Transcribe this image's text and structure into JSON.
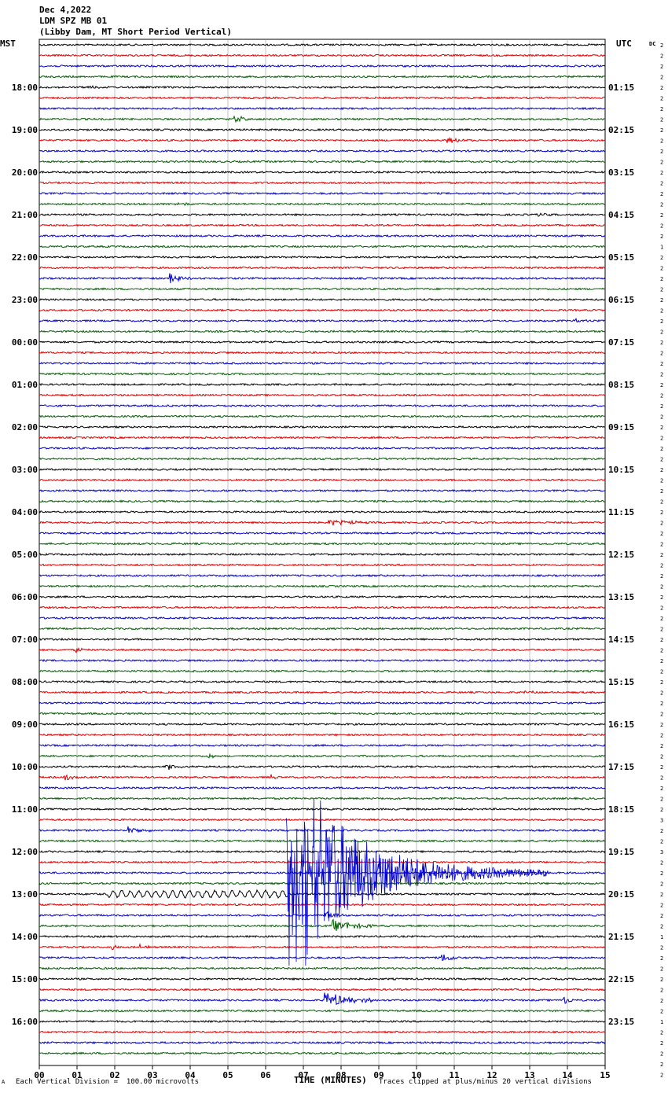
{
  "header": {
    "date": "Dec 4,2022",
    "station": "LDM SPZ MB 01",
    "description": "(Libby Dam, MT Short Period Vertical)",
    "left_tz": "MST",
    "right_tz": "UTC",
    "dc_label": "DC"
  },
  "footer": {
    "scale": "Each Vertical Division =  100.00 microvolts",
    "clip": "Traces clipped at plus/minus 20 vertical divisions",
    "corner": "A"
  },
  "colors": [
    "#000000",
    "#e00000",
    "#0000d0",
    "#006000"
  ],
  "chart_data": {
    "type": "line",
    "title": "",
    "xlabel": "TIME (MINUTES)",
    "xlim": [
      0,
      15
    ],
    "x_ticks": [
      "00",
      "01",
      "02",
      "03",
      "04",
      "05",
      "06",
      "07",
      "08",
      "09",
      "10",
      "11",
      "12",
      "13",
      "14",
      "15"
    ],
    "rows": 96,
    "minutes_per_row": 15,
    "left_hour_labels": [
      "18:00",
      "19:00",
      "20:00",
      "21:00",
      "22:00",
      "23:00",
      "00:00",
      "01:00",
      "02:00",
      "03:00",
      "04:00",
      "05:00",
      "06:00",
      "07:00",
      "08:00",
      "09:00",
      "10:00",
      "11:00",
      "12:00",
      "13:00",
      "14:00",
      "15:00",
      "16:00"
    ],
    "right_hour_labels": [
      "01:15",
      "02:15",
      "03:15",
      "04:15",
      "05:15",
      "06:15",
      "07:15",
      "08:15",
      "09:15",
      "10:15",
      "11:15",
      "12:15",
      "13:15",
      "14:15",
      "15:15",
      "16:15",
      "17:15",
      "18:15",
      "19:15",
      "20:15",
      "21:15",
      "22:15",
      "23:15"
    ],
    "dc_values": [
      "2",
      "2",
      "2",
      "2",
      "2",
      "2",
      "2",
      "2",
      "2",
      "2",
      "2",
      "2",
      "2",
      "2",
      "2",
      "2",
      "2",
      "2",
      "2",
      "1",
      "2",
      "2",
      "2",
      "2",
      "2",
      "2",
      "2",
      "2",
      "2",
      "2",
      "2",
      "2",
      "2",
      "2",
      "2",
      "2",
      "2",
      "2",
      "2",
      "2",
      "2",
      "2",
      "2",
      "2",
      "2",
      "2",
      "2",
      "2",
      "2",
      "2",
      "2",
      "2",
      "2",
      "2",
      "2",
      "2",
      "2",
      "2",
      "2",
      "2",
      "2",
      "2",
      "2",
      "2",
      "2",
      "2",
      "2",
      "2",
      "2",
      "2",
      "2",
      "2",
      "2",
      "3",
      "2",
      "2",
      "3",
      "2",
      "2",
      "2",
      "2",
      "2",
      "2",
      "2",
      "1",
      "2",
      "2",
      "2",
      "2",
      "2",
      "2",
      "2",
      "1",
      "2",
      "2",
      "2",
      "2",
      "2"
    ],
    "events": [
      {
        "row": 4,
        "minute": 1.3,
        "amp": 3,
        "dur": 0.4
      },
      {
        "row": 7,
        "minute": 5.2,
        "amp": 5,
        "dur": 0.4
      },
      {
        "row": 9,
        "minute": 10.8,
        "amp": 4,
        "dur": 0.6
      },
      {
        "row": 15,
        "minute": 3.7,
        "amp": 2,
        "dur": 0.5
      },
      {
        "row": 16,
        "minute": 13.2,
        "amp": 2,
        "dur": 0.5
      },
      {
        "row": 22,
        "minute": 3.5,
        "amp": 6,
        "dur": 0.6
      },
      {
        "row": 26,
        "minute": 14.2,
        "amp": 2,
        "dur": 0.4
      },
      {
        "row": 45,
        "minute": 7.7,
        "amp": 4,
        "dur": 1.0
      },
      {
        "row": 57,
        "minute": 1.0,
        "amp": 3,
        "dur": 0.4
      },
      {
        "row": 61,
        "minute": 12.9,
        "amp": 2,
        "dur": 0.4
      },
      {
        "row": 67,
        "minute": 4.5,
        "amp": 3,
        "dur": 0.3
      },
      {
        "row": 68,
        "minute": 3.4,
        "amp": 4,
        "dur": 0.4
      },
      {
        "row": 69,
        "minute": 0.7,
        "amp": 4,
        "dur": 0.3
      },
      {
        "row": 69,
        "minute": 6.1,
        "amp": 4,
        "dur": 0.3
      },
      {
        "row": 74,
        "minute": 2.4,
        "amp": 5,
        "dur": 0.6
      },
      {
        "row": 82,
        "minute": 7.6,
        "amp": 6,
        "dur": 0.5
      },
      {
        "row": 83,
        "minute": 7.8,
        "amp": 7,
        "dur": 1.2
      },
      {
        "row": 85,
        "minute": 1.9,
        "amp": 4,
        "dur": 0.3
      },
      {
        "row": 85,
        "minute": 2.7,
        "amp": 3,
        "dur": 0.3
      },
      {
        "row": 86,
        "minute": 10.7,
        "amp": 6,
        "dur": 0.5
      },
      {
        "row": 90,
        "minute": 7.6,
        "amp": 10,
        "dur": 1.3
      },
      {
        "row": 90,
        "minute": 13.9,
        "amp": 6,
        "dur": 0.3
      },
      {
        "row": 95,
        "minute": 5.7,
        "amp": 2,
        "dur": 0.4
      }
    ],
    "long_period_wave": {
      "row": 80,
      "from_minute": 1.8,
      "to_minute": 6.6,
      "amp": 4
    },
    "earthquake": {
      "row": 78,
      "onset_minute": 6.55,
      "coda_end_minute": 13.5,
      "clipped": true
    }
  }
}
